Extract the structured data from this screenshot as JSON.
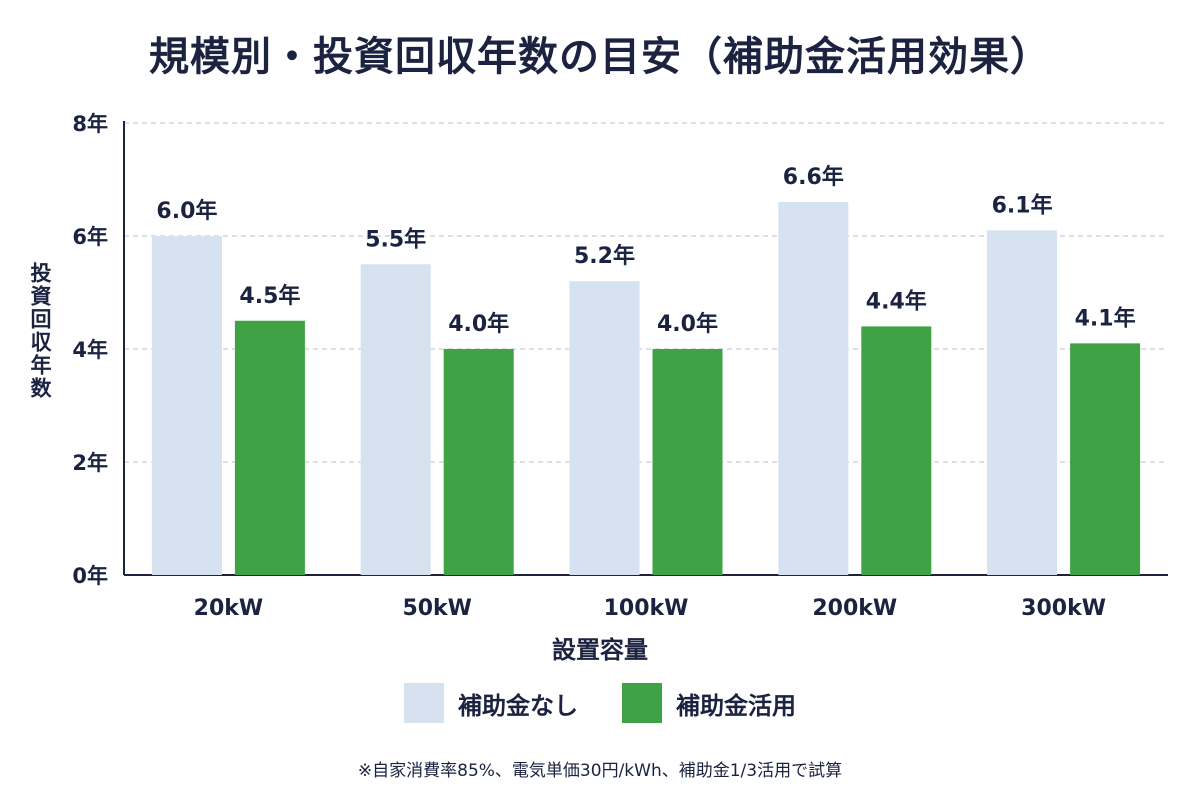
{
  "colors": {
    "without_subsidy": "#d6e2f0",
    "with_subsidy": "#3fa245",
    "text": "#1b2340",
    "grid": "#c9ced8",
    "axis": "#1b2340"
  },
  "chart_data": {
    "type": "bar",
    "title": "規模別・投資回収年数の目安（補助金活用効果）",
    "xlabel": "設置容量",
    "ylabel": "投資回収年数",
    "categories": [
      "20kW",
      "50kW",
      "100kW",
      "200kW",
      "300kW"
    ],
    "series": [
      {
        "name": "補助金なし",
        "values": [
          6.0,
          5.5,
          5.2,
          6.6,
          6.1
        ],
        "labels": [
          "6.0年",
          "5.5年",
          "5.2年",
          "6.6年",
          "6.1年"
        ]
      },
      {
        "name": "補助金活用",
        "values": [
          4.5,
          4.0,
          4.0,
          4.4,
          4.1
        ],
        "labels": [
          "4.5年",
          "4.0年",
          "4.0年",
          "4.4年",
          "4.1年"
        ]
      }
    ],
    "ylim": [
      0,
      8
    ],
    "yticks": [
      0,
      2,
      4,
      6,
      8
    ],
    "ytick_labels": [
      "0年",
      "2年",
      "4年",
      "6年",
      "8年"
    ],
    "grid": true,
    "legend_position": "bottom",
    "footnote": "※自家消費率85%、電気単価30円/kWh、補助金1/3活用で試算"
  }
}
